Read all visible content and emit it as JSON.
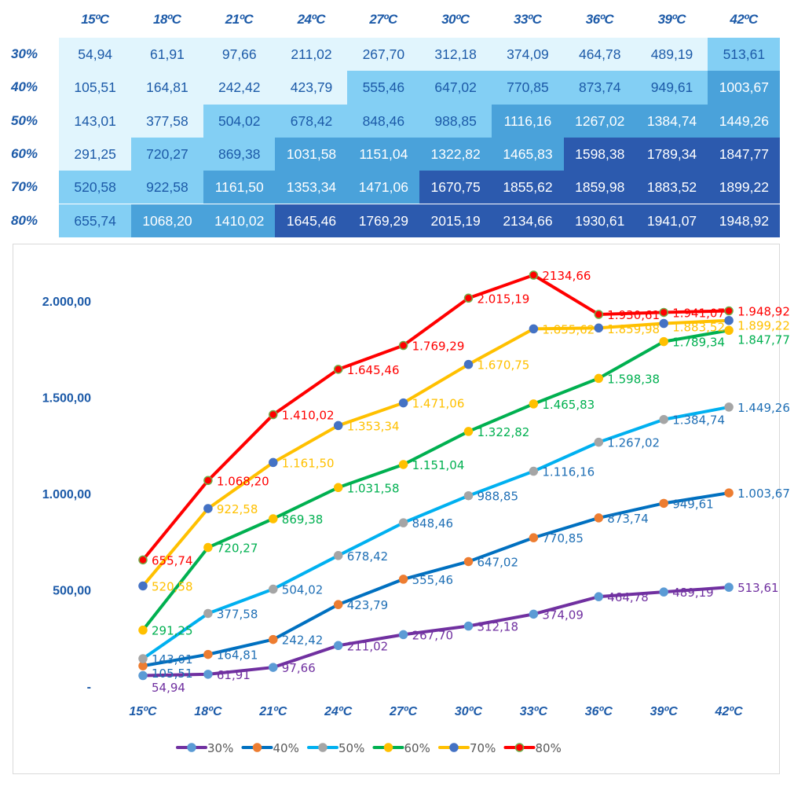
{
  "table": {
    "columns": [
      "15ºC",
      "18ºC",
      "21ºC",
      "24ºC",
      "27ºC",
      "30ºC",
      "33ºC",
      "36ºC",
      "39ºC",
      "42ºC"
    ],
    "rows": [
      {
        "label": "30%",
        "values": [
          "54,94",
          "61,91",
          "97,66",
          "211,02",
          "267,70",
          "312,18",
          "374,09",
          "464,78",
          "489,19",
          "513,61"
        ]
      },
      {
        "label": "40%",
        "values": [
          "105,51",
          "164,81",
          "242,42",
          "423,79",
          "555,46",
          "647,02",
          "770,85",
          "873,74",
          "949,61",
          "1003,67"
        ]
      },
      {
        "label": "50%",
        "values": [
          "143,01",
          "377,58",
          "504,02",
          "678,42",
          "848,46",
          "988,85",
          "1116,16",
          "1267,02",
          "1384,74",
          "1449,26"
        ]
      },
      {
        "label": "60%",
        "values": [
          "291,25",
          "720,27",
          "869,38",
          "1031,58",
          "1151,04",
          "1322,82",
          "1465,83",
          "1598,38",
          "1789,34",
          "1847,77"
        ]
      },
      {
        "label": "70%",
        "values": [
          "520,58",
          "922,58",
          "1161,50",
          "1353,34",
          "1471,06",
          "1670,75",
          "1855,62",
          "1859,98",
          "1883,52",
          "1899,22"
        ]
      },
      {
        "label": "80%",
        "values": [
          "655,74",
          "1068,20",
          "1410,02",
          "1645,46",
          "1769,29",
          "2015,19",
          "2134,66",
          "1930,61",
          "1941,07",
          "1948,92"
        ]
      }
    ],
    "colors": {
      "level1": "#e1f5fd",
      "level2": "#83cff4",
      "level3": "#4aa2da",
      "level4": "#2c5aae",
      "text_dark": "#1c5aa8",
      "text_light": "#ffffff"
    }
  },
  "chart_data": {
    "type": "line",
    "categories": [
      "15ºC",
      "18ºC",
      "21ºC",
      "24ºC",
      "27ºC",
      "30ºC",
      "33ºC",
      "36ºC",
      "39ºC",
      "42ºC"
    ],
    "ylim": [
      0,
      2250
    ],
    "yticks": [
      0,
      500,
      1000,
      1500,
      2000
    ],
    "ytick_labels": [
      "-",
      "500,00",
      "1.000,00",
      "1.500,00",
      "2.000,00"
    ],
    "grid": false,
    "legend": "bottom",
    "series": [
      {
        "name": "30%",
        "values": [
          54.94,
          61.91,
          97.66,
          211.02,
          267.7,
          312.18,
          374.09,
          464.78,
          489.19,
          513.61
        ],
        "labels": [
          "54,94",
          "61,91",
          "97,66",
          "211,02",
          "267,70",
          "312,18",
          "374,09",
          "464,78",
          "489,19",
          "513,61"
        ],
        "line": "#7030a0",
        "marker": "#5b9bd5",
        "marker_edge": "#5b9bd5",
        "label_color": "#7030a0"
      },
      {
        "name": "40%",
        "values": [
          105.51,
          164.81,
          242.42,
          423.79,
          555.46,
          647.02,
          770.85,
          873.74,
          949.61,
          1003.67
        ],
        "labels": [
          "105,51",
          "164,81",
          "242,42",
          "423,79",
          "555,46",
          "647,02",
          "770,85",
          "873,74",
          "949,61",
          "1.003,67"
        ],
        "line": "#0070c0",
        "marker": "#ed7d31",
        "marker_edge": "#ed7d31",
        "label_color": "#1f6fb5"
      },
      {
        "name": "50%",
        "values": [
          143.01,
          377.58,
          504.02,
          678.42,
          848.46,
          988.85,
          1116.16,
          1267.02,
          1384.74,
          1449.26
        ],
        "labels": [
          "143,01",
          "377,58",
          "504,02",
          "678,42",
          "848,46",
          "988,85",
          "1.116,16",
          "1.267,02",
          "1.384,74",
          "1.449,26"
        ],
        "line": "#00b0f0",
        "marker": "#a5a5a5",
        "marker_edge": "#a5a5a5",
        "label_color": "#1f6fb5"
      },
      {
        "name": "60%",
        "values": [
          291.25,
          720.27,
          869.38,
          1031.58,
          1151.04,
          1322.82,
          1465.83,
          1598.38,
          1789.34,
          1847.77
        ],
        "labels": [
          "291,25",
          "720,27",
          "869,38",
          "1.031,58",
          "1.151,04",
          "1.322,82",
          "1.465,83",
          "1.598,38",
          "1.789,34",
          "1.847,77"
        ],
        "line": "#00b050",
        "marker": "#ffc000",
        "marker_edge": "#ffc000",
        "label_color": "#00b050"
      },
      {
        "name": "70%",
        "values": [
          520.58,
          922.58,
          1161.5,
          1353.34,
          1471.06,
          1670.75,
          1855.62,
          1859.98,
          1883.52,
          1899.22
        ],
        "labels": [
          "520,58",
          "922,58",
          "1.161,50",
          "1.353,34",
          "1.471,06",
          "1.670,75",
          "1.855,62",
          "1.859,98",
          "1.883,52",
          "1.899,22"
        ],
        "line": "#ffc000",
        "marker": "#4472c4",
        "marker_edge": "#4472c4",
        "label_color": "#ffc000"
      },
      {
        "name": "80%",
        "values": [
          655.74,
          1068.2,
          1410.02,
          1645.46,
          1769.29,
          2015.19,
          2134.66,
          1930.61,
          1941.07,
          1948.92
        ],
        "labels": [
          "655,74",
          "1.068,20",
          "1.410,02",
          "1.645,46",
          "1.769,29",
          "2.015,19",
          "2134,66",
          "1.930,61",
          "1.941,07",
          "1.948,92"
        ],
        "line": "#ff0000",
        "marker": "#ff0000",
        "marker_edge": "#70ad47",
        "label_color": "#ff0000"
      }
    ]
  }
}
